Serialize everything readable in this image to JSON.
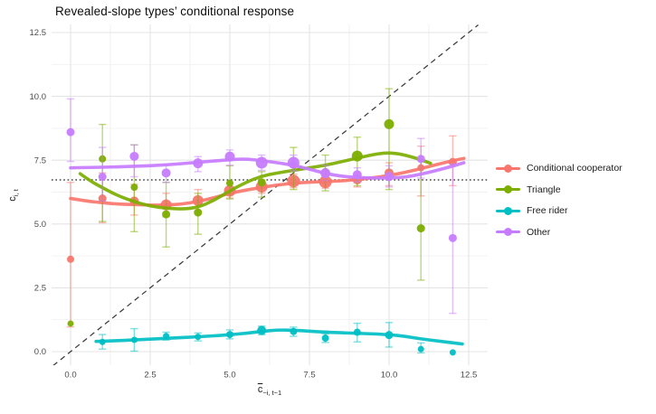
{
  "chart_data": {
    "type": "scatter-line",
    "title": "Revealed-slope types’ conditional response",
    "xlabel_base": "c",
    "xlabel_sub": "−i, t−1",
    "ylabel_base": "c",
    "ylabel_sub": "i, t",
    "xticks": [
      "0.0",
      "2.5",
      "5.0",
      "7.5",
      "10.0",
      "12.5"
    ],
    "yticks": [
      "0.0",
      "2.5",
      "5.0",
      "7.5",
      "10.0",
      "12.5"
    ],
    "xtick_values": [
      0,
      2.5,
      5,
      7.5,
      10,
      12.5
    ],
    "ytick_values": [
      0,
      2.5,
      5,
      7.5,
      10,
      12.5
    ],
    "minor_tick_values": [
      1.25,
      3.75,
      6.25,
      8.75,
      11.25
    ],
    "xlim": [
      -0.6,
      13.1
    ],
    "ylim": [
      -0.55,
      12.8
    ],
    "grid": {
      "major": true,
      "minor": true
    },
    "legend_position": "right",
    "reference_lines": {
      "identity_dashed": true,
      "horizontal_dotted_y": 6.73
    },
    "point_format": "x, y, ci_low, ci_high, radius_px",
    "series": [
      {
        "name": "Conditional cooperator",
        "color": "#F8766D",
        "points": [
          [
            0,
            3.62,
            0.97,
            6.63,
            4
          ],
          [
            1,
            6.0,
            5.05,
            7.0,
            4.5
          ],
          [
            2,
            5.9,
            5.35,
            6.55,
            5
          ],
          [
            3,
            5.75,
            5.28,
            6.2,
            6
          ],
          [
            4,
            5.92,
            5.5,
            6.35,
            6
          ],
          [
            5,
            6.3,
            6.02,
            6.6,
            6.5
          ],
          [
            6,
            6.46,
            6.2,
            6.72,
            6.5
          ],
          [
            7,
            6.68,
            6.42,
            6.95,
            7
          ],
          [
            8,
            6.65,
            6.4,
            6.9,
            7
          ],
          [
            9,
            6.75,
            6.45,
            7.0,
            5.5
          ],
          [
            10,
            7.0,
            6.5,
            7.4,
            5
          ],
          [
            11,
            7.2,
            6.1,
            8.05,
            4
          ],
          [
            12,
            7.43,
            6.5,
            8.45,
            4.5
          ]
        ],
        "curve": [
          [
            0,
            6.0
          ],
          [
            0.5,
            5.9
          ],
          [
            1,
            5.83
          ],
          [
            1.5,
            5.78
          ],
          [
            2,
            5.76
          ],
          [
            2.5,
            5.74
          ],
          [
            3,
            5.74
          ],
          [
            3.5,
            5.78
          ],
          [
            4,
            5.88
          ],
          [
            4.5,
            6.03
          ],
          [
            5,
            6.2
          ],
          [
            5.5,
            6.33
          ],
          [
            6,
            6.43
          ],
          [
            6.5,
            6.53
          ],
          [
            7,
            6.6
          ],
          [
            7.5,
            6.64
          ],
          [
            8,
            6.66
          ],
          [
            8.5,
            6.69
          ],
          [
            9,
            6.74
          ],
          [
            9.5,
            6.81
          ],
          [
            10,
            6.9
          ],
          [
            10.5,
            7.02
          ],
          [
            11,
            7.17
          ],
          [
            11.5,
            7.33
          ],
          [
            12,
            7.48
          ],
          [
            12.35,
            7.57
          ]
        ]
      },
      {
        "name": "Triangle",
        "color": "#7CAE00",
        "points": [
          [
            0,
            1.1,
            1.1,
            1.1,
            3.5
          ],
          [
            1,
            7.55,
            5.1,
            8.9,
            4
          ],
          [
            2,
            6.44,
            4.7,
            8.1,
            4
          ],
          [
            3,
            5.38,
            4.1,
            6.63,
            4.5
          ],
          [
            4,
            5.45,
            4.6,
            6.2,
            4.5
          ],
          [
            5,
            6.6,
            5.98,
            7.28,
            4
          ],
          [
            6,
            6.63,
            6.05,
            7.05,
            4.5
          ],
          [
            7,
            7.3,
            6.35,
            8.0,
            4
          ],
          [
            8,
            7.05,
            6.3,
            7.7,
            4
          ],
          [
            9,
            7.66,
            6.5,
            8.4,
            6
          ],
          [
            10,
            8.91,
            6.35,
            10.3,
            5.5
          ],
          [
            11,
            4.83,
            2.8,
            7.5,
            4.5
          ]
        ],
        "curve": [
          [
            0.3,
            6.97
          ],
          [
            0.6,
            6.7
          ],
          [
            1,
            6.42
          ],
          [
            1.5,
            6.1
          ],
          [
            2,
            5.87
          ],
          [
            2.5,
            5.7
          ],
          [
            3,
            5.62
          ],
          [
            3.5,
            5.58
          ],
          [
            4,
            5.65
          ],
          [
            4.5,
            5.92
          ],
          [
            5,
            6.3
          ],
          [
            5.5,
            6.63
          ],
          [
            6,
            6.88
          ],
          [
            6.5,
            7.0
          ],
          [
            7,
            7.1
          ],
          [
            7.5,
            7.2
          ],
          [
            8,
            7.3
          ],
          [
            8.5,
            7.44
          ],
          [
            9,
            7.58
          ],
          [
            9.5,
            7.72
          ],
          [
            9.9,
            7.79
          ],
          [
            10.3,
            7.76
          ],
          [
            10.8,
            7.6
          ],
          [
            11.3,
            7.38
          ]
        ]
      },
      {
        "name": "Free rider",
        "color": "#00BFC4",
        "points": [
          [
            1,
            0.38,
            0.1,
            0.67,
            3.5
          ],
          [
            2,
            0.46,
            0.02,
            0.9,
            3.5
          ],
          [
            3,
            0.61,
            0.45,
            0.76,
            3.5
          ],
          [
            4,
            0.58,
            0.42,
            0.73,
            3.5
          ],
          [
            5,
            0.67,
            0.5,
            0.85,
            4
          ],
          [
            6,
            0.83,
            0.66,
            1.0,
            5
          ],
          [
            7,
            0.79,
            0.6,
            0.96,
            4
          ],
          [
            8,
            0.53,
            0.36,
            0.7,
            4
          ],
          [
            9,
            0.76,
            0.38,
            1.11,
            4
          ],
          [
            10,
            0.65,
            0.18,
            1.14,
            4.5
          ],
          [
            11,
            0.1,
            -0.05,
            0.34,
            3.5
          ],
          [
            12,
            -0.03,
            -0.03,
            -0.03,
            3.5
          ]
        ],
        "curve": [
          [
            0.8,
            0.4
          ],
          [
            1.5,
            0.43
          ],
          [
            2,
            0.46
          ],
          [
            3,
            0.52
          ],
          [
            4,
            0.58
          ],
          [
            5,
            0.66
          ],
          [
            5.5,
            0.72
          ],
          [
            6,
            0.79
          ],
          [
            6.5,
            0.85
          ],
          [
            7,
            0.84
          ],
          [
            7.5,
            0.8
          ],
          [
            8,
            0.76
          ],
          [
            9,
            0.72
          ],
          [
            10,
            0.67
          ],
          [
            10.5,
            0.6
          ],
          [
            11,
            0.5
          ],
          [
            11.5,
            0.42
          ],
          [
            12.3,
            0.3
          ]
        ]
      },
      {
        "name": "Other",
        "color": "#C77CFF",
        "points": [
          [
            0,
            8.6,
            7.45,
            9.9,
            4.5
          ],
          [
            1,
            6.85,
            5.9,
            8.0,
            4.5
          ],
          [
            2,
            7.65,
            6.85,
            8.1,
            5
          ],
          [
            3,
            7.0,
            6.63,
            7.34,
            5
          ],
          [
            4,
            7.38,
            7.05,
            7.64,
            5.5
          ],
          [
            5,
            7.64,
            7.3,
            7.9,
            5.5
          ],
          [
            6,
            7.4,
            7.1,
            7.7,
            6.5
          ],
          [
            7,
            7.4,
            7.08,
            7.7,
            6.5
          ],
          [
            8,
            6.99,
            6.7,
            7.3,
            5.5
          ],
          [
            9,
            6.93,
            6.65,
            7.2,
            5
          ],
          [
            10,
            6.86,
            6.45,
            7.28,
            5
          ],
          [
            11,
            7.55,
            6.8,
            8.35,
            4.5
          ],
          [
            12,
            4.45,
            1.5,
            7.35,
            4.5
          ]
        ],
        "curve": [
          [
            0,
            7.2
          ],
          [
            1,
            7.22
          ],
          [
            2,
            7.26
          ],
          [
            3,
            7.31
          ],
          [
            4,
            7.42
          ],
          [
            5,
            7.52
          ],
          [
            5.5,
            7.55
          ],
          [
            6,
            7.48
          ],
          [
            6.5,
            7.4
          ],
          [
            7,
            7.3
          ],
          [
            7.5,
            7.15
          ],
          [
            8,
            6.98
          ],
          [
            8.5,
            6.87
          ],
          [
            9,
            6.82
          ],
          [
            9.5,
            6.8
          ],
          [
            10,
            6.8
          ],
          [
            10.5,
            6.83
          ],
          [
            11,
            6.95
          ],
          [
            11.5,
            7.1
          ],
          [
            12,
            7.27
          ],
          [
            12.35,
            7.4
          ]
        ]
      }
    ]
  }
}
